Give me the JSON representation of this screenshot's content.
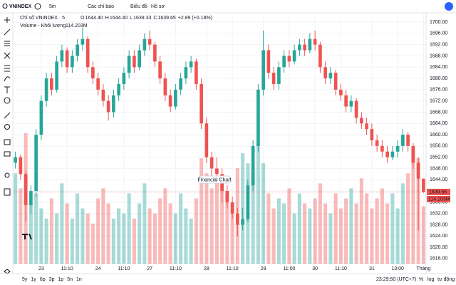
{
  "toolbar": {
    "symbol": "VNINDEX",
    "interval": "5m",
    "indicators": "Các chỉ báo",
    "chart_type": "Biểu đồ",
    "profile": "Hồ sơ"
  },
  "chart_data": {
    "type": "candlestick",
    "title": "Chỉ số VNINDEX · 5",
    "legend": [
      {
        "key": "O",
        "value": "1644.40"
      },
      {
        "key": "H",
        "value": "1644.40"
      },
      {
        "key": "L",
        "value": "1639.33"
      },
      {
        "key": "C",
        "value": "1639.65"
      }
    ],
    "change_label": "+2.89 (+0.18%)",
    "volume_title": "Volume - Khối lượng",
    "volume_label": "114.203M",
    "last_price_label": "1639.65",
    "tooltip": "Financial Chart",
    "up_color": "#26a69a",
    "down_color": "#ef5350",
    "ylim": [
      1614.2,
      1703.3
    ],
    "vlim": [
      0,
      500
    ],
    "yticks": [
      {
        "value": 1616,
        "label": "1616.00"
      },
      {
        "value": 1620,
        "label": "1620.00"
      },
      {
        "value": 1624,
        "label": "1624.00"
      },
      {
        "value": 1628,
        "label": "1628.00"
      },
      {
        "value": 1632,
        "label": "1632.00"
      },
      {
        "value": 1636,
        "label": "1636.00"
      },
      {
        "value": 1640,
        "label": "1640.00"
      },
      {
        "value": 1644,
        "label": "1644.00"
      },
      {
        "value": 1648,
        "label": "1648.00"
      },
      {
        "value": 1652,
        "label": "1652.00"
      },
      {
        "value": 1656,
        "label": "1656.00"
      },
      {
        "value": 1660,
        "label": "1660.00"
      },
      {
        "value": 1664,
        "label": "1664.00"
      },
      {
        "value": 1668,
        "label": "1668.00"
      },
      {
        "value": 1672,
        "label": "1672.00"
      },
      {
        "value": 1676,
        "label": "1676.00"
      },
      {
        "value": 1680,
        "label": "1680.00"
      },
      {
        "value": 1684,
        "label": "1684.00"
      },
      {
        "value": 1688,
        "label": "1688.00"
      },
      {
        "value": 1692,
        "label": "1692.00"
      },
      {
        "value": 1696,
        "label": "1696.00"
      },
      {
        "value": 1700,
        "label": "1700.00"
      }
    ],
    "grid": true,
    "categories": [
      null,
      null,
      null,
      null,
      null,
      "23",
      null,
      null,
      null,
      null,
      "11:10",
      null,
      null,
      null,
      null,
      null,
      "24",
      null,
      null,
      null,
      null,
      "11:10",
      null,
      null,
      null,
      null,
      "27",
      null,
      null,
      null,
      null,
      "11:10",
      null,
      null,
      null,
      null,
      null,
      "28",
      null,
      null,
      null,
      null,
      "11:10",
      null,
      null,
      null,
      null,
      null,
      "29",
      null,
      null,
      null,
      null,
      "11:00",
      null,
      null,
      null,
      null,
      "30",
      null,
      null,
      null,
      null,
      "11:10",
      null,
      null,
      null,
      null,
      null,
      "31",
      null,
      null,
      null,
      null,
      "13:00",
      null,
      null,
      null,
      null,
      "Tháng"
    ],
    "candles": [
      [
        1650,
        1654,
        1648,
        1652
      ],
      [
        1652,
        1653,
        1644,
        1646
      ],
      [
        1646,
        1647,
        1629,
        1635
      ],
      [
        1635,
        1642,
        1632,
        1640
      ],
      [
        1640,
        1662,
        1638,
        1660
      ],
      [
        1660,
        1674,
        1658,
        1672
      ],
      [
        1672,
        1682,
        1670,
        1680
      ],
      [
        1680,
        1682,
        1674,
        1676
      ],
      [
        1676,
        1688,
        1675,
        1686
      ],
      [
        1686,
        1692,
        1684,
        1690
      ],
      [
        1690,
        1691,
        1682,
        1684
      ],
      [
        1684,
        1690,
        1682,
        1688
      ],
      [
        1688,
        1694,
        1686,
        1692
      ],
      [
        1692,
        1698,
        1690,
        1694
      ],
      [
        1694,
        1695,
        1682,
        1684
      ],
      [
        1684,
        1686,
        1678,
        1680
      ],
      [
        1680,
        1682,
        1674,
        1676
      ],
      [
        1676,
        1678,
        1670,
        1672
      ],
      [
        1672,
        1674,
        1665,
        1668
      ],
      [
        1668,
        1676,
        1666,
        1674
      ],
      [
        1674,
        1680,
        1672,
        1678
      ],
      [
        1678,
        1684,
        1676,
        1682
      ],
      [
        1682,
        1690,
        1680,
        1688
      ],
      [
        1688,
        1690,
        1682,
        1684
      ],
      [
        1684,
        1692,
        1683,
        1690
      ],
      [
        1690,
        1696,
        1688,
        1694
      ],
      [
        1694,
        1697,
        1690,
        1692
      ],
      [
        1692,
        1693,
        1684,
        1686
      ],
      [
        1686,
        1688,
        1678,
        1680
      ],
      [
        1680,
        1682,
        1672,
        1674
      ],
      [
        1674,
        1676,
        1668,
        1670
      ],
      [
        1670,
        1678,
        1669,
        1676
      ],
      [
        1676,
        1682,
        1674,
        1680
      ],
      [
        1680,
        1686,
        1678,
        1684
      ],
      [
        1684,
        1688,
        1682,
        1686
      ],
      [
        1686,
        1687,
        1676,
        1678
      ],
      [
        1678,
        1680,
        1662,
        1664
      ],
      [
        1664,
        1666,
        1650,
        1652
      ],
      [
        1652,
        1654,
        1644,
        1648
      ],
      [
        1648,
        1652,
        1644,
        1646
      ],
      [
        1646,
        1648,
        1636,
        1640
      ],
      [
        1640,
        1642,
        1634,
        1636
      ],
      [
        1636,
        1638,
        1630,
        1632
      ],
      [
        1632,
        1634,
        1624,
        1628
      ],
      [
        1628,
        1634,
        1626,
        1630
      ],
      [
        1630,
        1644,
        1629,
        1642
      ],
      [
        1642,
        1658,
        1640,
        1656
      ],
      [
        1656,
        1678,
        1654,
        1676
      ],
      [
        1676,
        1697,
        1674,
        1690
      ],
      [
        1690,
        1692,
        1680,
        1682
      ],
      [
        1682,
        1684,
        1676,
        1678
      ],
      [
        1678,
        1686,
        1676,
        1684
      ],
      [
        1684,
        1690,
        1682,
        1688
      ],
      [
        1688,
        1690,
        1684,
        1686
      ],
      [
        1686,
        1692,
        1685,
        1690
      ],
      [
        1690,
        1694,
        1688,
        1692
      ],
      [
        1692,
        1694,
        1688,
        1690
      ],
      [
        1690,
        1696,
        1689,
        1694
      ],
      [
        1694,
        1697,
        1690,
        1692
      ],
      [
        1692,
        1693,
        1682,
        1684
      ],
      [
        1684,
        1686,
        1678,
        1680
      ],
      [
        1680,
        1684,
        1678,
        1682
      ],
      [
        1682,
        1683,
        1674,
        1676
      ],
      [
        1676,
        1678,
        1672,
        1674
      ],
      [
        1674,
        1676,
        1668,
        1670
      ],
      [
        1670,
        1674,
        1668,
        1672
      ],
      [
        1672,
        1673,
        1664,
        1666
      ],
      [
        1666,
        1668,
        1662,
        1664
      ],
      [
        1664,
        1666,
        1660,
        1662
      ],
      [
        1662,
        1664,
        1656,
        1658
      ],
      [
        1658,
        1660,
        1654,
        1656
      ],
      [
        1656,
        1658,
        1652,
        1654
      ],
      [
        1654,
        1656,
        1650,
        1652
      ],
      [
        1652,
        1656,
        1651,
        1654
      ],
      [
        1654,
        1658,
        1652,
        1656
      ],
      [
        1656,
        1662,
        1654,
        1660
      ],
      [
        1660,
        1661,
        1654,
        1656
      ],
      [
        1656,
        1657,
        1648,
        1650
      ],
      [
        1650,
        1652,
        1626,
        1644.4
      ],
      [
        1644.4,
        1644.4,
        1639.33,
        1639.65
      ]
    ],
    "volumes": [
      180,
      150,
      260,
      120,
      140,
      110,
      90,
      130,
      100,
      160,
      120,
      90,
      140,
      110,
      100,
      80,
      130,
      150,
      120,
      90,
      110,
      100,
      140,
      90,
      120,
      160,
      110,
      100,
      130,
      150,
      120,
      100,
      140,
      110,
      90,
      130,
      210,
      180,
      150,
      170,
      160,
      140,
      120,
      190,
      220,
      200,
      180,
      240,
      200,
      140,
      110,
      130,
      120,
      150,
      100,
      140,
      120,
      110,
      130,
      160,
      120,
      100,
      140,
      110,
      130,
      150,
      120,
      170,
      140,
      110,
      130,
      150,
      120,
      140,
      110,
      160,
      180,
      230,
      210,
      114.203
    ]
  },
  "footer": {
    "ranges": [
      "5y",
      "1y",
      "6p",
      "3p",
      "1p",
      "5n",
      "1n"
    ],
    "clock": "23:29:50 (UTC+7)",
    "percent": "%",
    "log": "log",
    "auto": "tự động"
  }
}
